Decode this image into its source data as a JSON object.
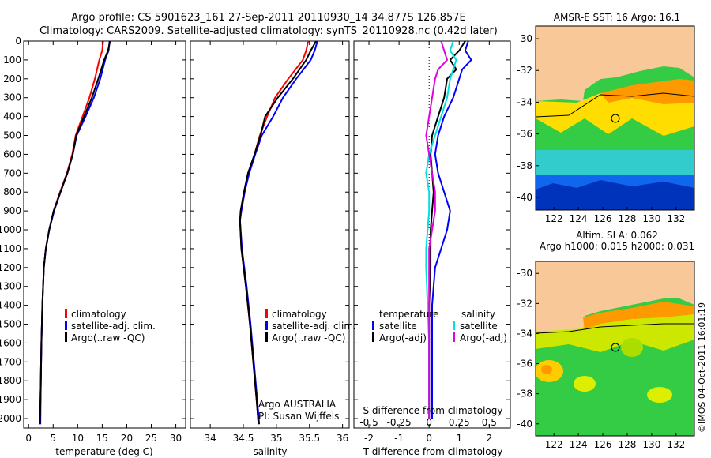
{
  "header": {
    "line1": "Argo profile: CS 5901623_161 27-Sep-2011 20110930_14 34.877S 126.857E",
    "line2": "Climatology: CARS2009. Satellite-adjusted climatology: synTS_20110928.nc (0.42d later)"
  },
  "colors": {
    "climatology": "#ff0000",
    "satellite": "#0000ff",
    "argo": "#000000",
    "temp_satellite_diff": "#0000ff",
    "sal_satellite_diff": "#00e0e0",
    "sal_argo_diff": "#e000e0",
    "land": "#f8c898"
  },
  "chart_data": [
    {
      "type": "line",
      "panel": "temperature",
      "xlabel": "temperature (deg C)",
      "xlim": [
        -1,
        32
      ],
      "xticks": [
        "0",
        "5",
        "10",
        "15",
        "20",
        "25",
        "30"
      ],
      "xtick_values": [
        0,
        5,
        10,
        15,
        20,
        25,
        30
      ],
      "ylim": [
        0,
        2050
      ],
      "yticks": [
        "0",
        "100",
        "200",
        "300",
        "400",
        "500",
        "600",
        "700",
        "800",
        "900",
        "1000",
        "1100",
        "1200",
        "1300",
        "1400",
        "1500",
        "1600",
        "1700",
        "1800",
        "1900",
        "2000"
      ],
      "ytick_values": [
        0,
        100,
        200,
        300,
        400,
        500,
        600,
        700,
        800,
        900,
        1000,
        1100,
        1200,
        1300,
        1400,
        1500,
        1600,
        1700,
        1800,
        1900,
        2000
      ],
      "legend": [
        "climatology",
        "satellite-adj. clim.",
        "Argo(..raw -QC)"
      ],
      "series": [
        {
          "name": "climatology",
          "color_key": "climatology",
          "depth": [
            0,
            50,
            100,
            200,
            300,
            400,
            500,
            600,
            700,
            800,
            900,
            1000,
            1100,
            1200,
            1400,
            1600,
            1800,
            2030
          ],
          "values": [
            15.2,
            15.0,
            14.4,
            13.5,
            12.4,
            11.0,
            9.6,
            8.9,
            7.8,
            6.4,
            5.1,
            4.2,
            3.5,
            3.1,
            2.8,
            2.6,
            2.5,
            2.3
          ]
        },
        {
          "name": "satellite-adj. clim.",
          "color_key": "satellite",
          "depth": [
            0,
            50,
            100,
            200,
            300,
            400,
            500,
            600,
            700,
            800,
            900,
            1000,
            1100,
            1200,
            1400,
            1600,
            1800,
            2030
          ],
          "values": [
            16.5,
            16.3,
            15.6,
            14.6,
            13.3,
            11.6,
            9.8,
            9.0,
            7.9,
            6.5,
            5.2,
            4.2,
            3.5,
            3.1,
            2.8,
            2.6,
            2.5,
            2.4
          ]
        },
        {
          "name": "Argo(..raw -QC)",
          "color_key": "argo",
          "depth": [
            0,
            50,
            100,
            200,
            300,
            400,
            500,
            600,
            700,
            800,
            900,
            1000,
            1100,
            1200,
            1400,
            1600,
            1800,
            2030
          ],
          "values": [
            16.6,
            16.2,
            15.4,
            14.2,
            12.9,
            11.3,
            9.7,
            9.0,
            7.9,
            6.5,
            5.1,
            4.2,
            3.5,
            3.1,
            2.8,
            2.6,
            2.5,
            2.3
          ]
        }
      ]
    },
    {
      "type": "line",
      "panel": "salinity",
      "xlabel": "salinity",
      "xlim": [
        33.7,
        36.1
      ],
      "xticks": [
        "34",
        "34.5",
        "35",
        "35.5",
        "36"
      ],
      "xtick_values": [
        34,
        34.5,
        35,
        35.5,
        36
      ],
      "ylim": [
        0,
        2050
      ],
      "legend": [
        "climatology",
        "satellite-adj. clim.",
        "Argo(..raw -QC)"
      ],
      "annotations": [
        "Argo AUSTRALIA",
        "PI: Susan Wijffels"
      ],
      "series": [
        {
          "name": "climatology",
          "color_key": "climatology",
          "depth": [
            0,
            50,
            100,
            200,
            300,
            400,
            500,
            600,
            700,
            800,
            900,
            950,
            1100,
            1300,
            1500,
            1700,
            1900,
            2030
          ],
          "values": [
            35.48,
            35.45,
            35.4,
            35.18,
            34.98,
            34.86,
            34.75,
            34.67,
            34.58,
            34.52,
            34.47,
            34.45,
            34.47,
            34.54,
            34.6,
            34.65,
            34.7,
            34.73
          ]
        },
        {
          "name": "satellite-adj. clim.",
          "color_key": "satellite",
          "depth": [
            0,
            50,
            100,
            200,
            300,
            400,
            500,
            600,
            700,
            800,
            900,
            950,
            1100,
            1300,
            1500,
            1700,
            1900,
            2030
          ],
          "values": [
            35.62,
            35.58,
            35.52,
            35.3,
            35.1,
            34.95,
            34.78,
            34.68,
            34.59,
            34.52,
            34.47,
            34.45,
            34.48,
            34.55,
            34.61,
            34.66,
            34.71,
            34.74
          ]
        },
        {
          "name": "Argo(..raw -QC)",
          "color_key": "argo",
          "depth": [
            0,
            50,
            100,
            200,
            300,
            400,
            500,
            600,
            700,
            800,
            900,
            950,
            1100,
            1300,
            1500,
            1700,
            1900,
            2030
          ],
          "values": [
            35.6,
            35.52,
            35.45,
            35.25,
            35.02,
            34.83,
            34.76,
            34.67,
            34.57,
            34.51,
            34.46,
            34.45,
            34.47,
            34.54,
            34.6,
            34.65,
            34.7,
            34.73
          ]
        }
      ]
    },
    {
      "type": "line",
      "panel": "difference",
      "xlabel": "T difference from climatology",
      "xlabel_top": "S difference from climatology",
      "xlim": [
        -2.5,
        2.7
      ],
      "xticks": [
        "-2",
        "-1",
        "0",
        "1",
        "2"
      ],
      "xtick_values": [
        -2,
        -1,
        0,
        1,
        2
      ],
      "sticks": [
        "-0.5",
        "-0.25",
        "0",
        "0.25",
        "0.5"
      ],
      "stick_values": [
        -2,
        -1,
        0,
        1,
        2
      ],
      "ylim": [
        0,
        2050
      ],
      "legend_temperature_title": "temperature",
      "legend_salinity_title": "salinity",
      "legend": [
        "satellite",
        "Argo(-adj)",
        "satellite",
        "Argo(-adj)"
      ],
      "series": [
        {
          "name": "satellite",
          "color_key": "temp_satellite_diff",
          "depth": [
            0,
            50,
            100,
            150,
            200,
            300,
            400,
            500,
            600,
            700,
            800,
            900,
            1000,
            1100,
            1200,
            1400,
            1600,
            1800,
            2000
          ],
          "values": [
            1.3,
            1.2,
            1.4,
            1.1,
            1.0,
            0.8,
            0.5,
            0.3,
            0.2,
            0.3,
            0.5,
            0.7,
            0.6,
            0.4,
            0.2,
            0.1,
            0.1,
            0.1,
            0.1
          ]
        },
        {
          "name": "Argo(-adj)",
          "color_key": "argo",
          "depth": [
            0,
            50,
            100,
            150,
            200,
            300,
            400,
            500,
            600,
            700,
            800,
            900,
            1000,
            1100,
            1200,
            1400,
            1600,
            1800,
            2000
          ],
          "values": [
            1.2,
            1.0,
            0.7,
            0.9,
            0.6,
            0.5,
            0.3,
            0.1,
            0.05,
            0.1,
            0.15,
            0.1,
            0.05,
            0.05,
            0.05,
            0.0,
            0.0,
            0.0,
            0.0
          ]
        },
        {
          "name": "satellite",
          "color_key": "sal_satellite_diff",
          "depth": [
            0,
            50,
            100,
            150,
            200,
            300,
            400,
            500,
            600,
            700,
            800,
            900,
            1000,
            1100,
            1200,
            1400,
            1600,
            1800,
            2000
          ],
          "values": [
            0.8,
            0.7,
            0.9,
            0.8,
            0.7,
            0.6,
            0.4,
            0.2,
            0.0,
            -0.1,
            0.0,
            0.0,
            -0.05,
            -0.1,
            -0.1,
            -0.05,
            0.0,
            0.0,
            0.0
          ]
        },
        {
          "name": "Argo(-adj)",
          "color_key": "sal_argo_diff",
          "depth": [
            0,
            50,
            100,
            150,
            200,
            300,
            400,
            500,
            600,
            700,
            800,
            900,
            1000,
            1100,
            1200,
            1400,
            1600,
            1800,
            2000
          ],
          "values": [
            0.4,
            0.5,
            0.6,
            0.3,
            0.2,
            0.1,
            0.0,
            -0.1,
            0.0,
            0.1,
            0.2,
            0.2,
            0.1,
            0.0,
            0.0,
            0.0,
            0.0,
            0.0,
            0.0
          ]
        }
      ]
    },
    {
      "type": "heatmap",
      "panel": "sst-map",
      "title": "AMSR-E SST: 16 Argo: 16.1",
      "xticks": [
        "122",
        "124",
        "126",
        "128",
        "130",
        "132"
      ],
      "xtick_values": [
        122,
        124,
        126,
        128,
        130,
        132
      ],
      "yticks": [
        "-30",
        "-32",
        "-34",
        "-36",
        "-38",
        "-40"
      ],
      "ytick_values": [
        -30,
        -32,
        -34,
        -36,
        -38,
        -40
      ],
      "xlim": [
        120.5,
        133.5
      ],
      "ylim": [
        -40.8,
        -29.2
      ],
      "argo_lon": 126.857,
      "argo_lat": -34.877
    },
    {
      "type": "heatmap",
      "panel": "sla-map",
      "title": "Altim. SLA: 0.062",
      "subtitle": "Argo h1000: 0.015 h2000: 0.031",
      "xticks": [
        "122",
        "124",
        "126",
        "128",
        "130",
        "132"
      ],
      "xtick_values": [
        122,
        124,
        126,
        128,
        130,
        132
      ],
      "yticks": [
        "-30",
        "-32",
        "-34",
        "-36",
        "-38",
        "-40"
      ],
      "ytick_values": [
        -30,
        -32,
        -34,
        -36,
        -38,
        -40
      ],
      "xlim": [
        120.5,
        133.5
      ],
      "ylim": [
        -40.8,
        -29.2
      ],
      "argo_lon": 126.857,
      "argo_lat": -34.877
    }
  ],
  "footer": {
    "credit": "©IMOS 04-Oct-2011 16:01:19"
  }
}
